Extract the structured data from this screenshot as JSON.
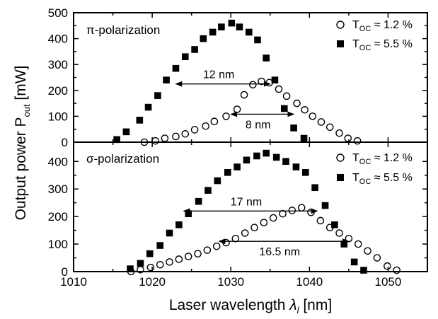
{
  "chart_data": [
    {
      "type": "scatter",
      "title": "π-polarization",
      "xlabel": "Laser wavelength λl [nm]",
      "ylabel": "Output power Pout [mW]",
      "xlim": [
        1010,
        1055
      ],
      "ylim": [
        0,
        500
      ],
      "x_ticks": [
        1010,
        1020,
        1030,
        1040,
        1050
      ],
      "y_ticks": [
        0,
        100,
        200,
        300,
        400,
        500
      ],
      "grid": false,
      "legend_position": "top-right",
      "series": [
        {
          "name": "T_OC ≈ 1.2 %",
          "marker": "open-circle",
          "points": [
            [
              1019,
              0
            ],
            [
              1020.4,
              5
            ],
            [
              1021.6,
              15
            ],
            [
              1023,
              22
            ],
            [
              1024.2,
              32
            ],
            [
              1025.4,
              48
            ],
            [
              1026.8,
              62
            ],
            [
              1027.9,
              80
            ],
            [
              1029.4,
              100
            ],
            [
              1030.8,
              127
            ],
            [
              1031.7,
              183
            ],
            [
              1032.8,
              222
            ],
            [
              1033.9,
              235
            ],
            [
              1034.9,
              230
            ],
            [
              1036.1,
              205
            ],
            [
              1037.1,
              178
            ],
            [
              1038.4,
              150
            ],
            [
              1039.4,
              125
            ],
            [
              1040.4,
              100
            ],
            [
              1041.5,
              78
            ],
            [
              1042.6,
              58
            ],
            [
              1043.8,
              35
            ],
            [
              1044.9,
              15
            ],
            [
              1046.1,
              5
            ]
          ]
        },
        {
          "name": "T_OC ≈ 5.5 %",
          "marker": "filled-square",
          "points": [
            [
              1015.5,
              10
            ],
            [
              1016.7,
              40
            ],
            [
              1018.4,
              85
            ],
            [
              1019.5,
              135
            ],
            [
              1020.7,
              180
            ],
            [
              1021.8,
              240
            ],
            [
              1023,
              285
            ],
            [
              1024.2,
              330
            ],
            [
              1025.4,
              358
            ],
            [
              1026.5,
              400
            ],
            [
              1027.7,
              425
            ],
            [
              1028.8,
              445
            ],
            [
              1030.1,
              460
            ],
            [
              1031.1,
              445
            ],
            [
              1032.3,
              425
            ],
            [
              1033.4,
              395
            ],
            [
              1034.5,
              325
            ],
            [
              1035.6,
              240
            ],
            [
              1036.8,
              130
            ],
            [
              1038,
              55
            ],
            [
              1039.3,
              15
            ]
          ]
        }
      ],
      "annotations": [
        {
          "text": "12 nm",
          "x_from": 1023,
          "x_to": 1035,
          "y": 225
        },
        {
          "text": "8 nm",
          "x_from": 1030,
          "x_to": 1038,
          "y": 108
        }
      ]
    },
    {
      "type": "scatter",
      "title": "σ-polarization",
      "xlabel": "Laser wavelength λl [nm]",
      "ylabel": "Output power Pout [mW]",
      "xlim": [
        1010,
        1055
      ],
      "ylim": [
        0,
        470
      ],
      "x_ticks": [
        1010,
        1020,
        1030,
        1040,
        1050
      ],
      "y_ticks": [
        0,
        100,
        200,
        300,
        400
      ],
      "grid": false,
      "legend_position": "top-right",
      "series": [
        {
          "name": "T_OC ≈ 1.2 %",
          "marker": "open-circle",
          "points": [
            [
              1017.3,
              0
            ],
            [
              1018.5,
              7
            ],
            [
              1019.8,
              15
            ],
            [
              1021,
              25
            ],
            [
              1022.2,
              35
            ],
            [
              1023.4,
              45
            ],
            [
              1024.6,
              55
            ],
            [
              1025.8,
              65
            ],
            [
              1027,
              78
            ],
            [
              1028.2,
              92
            ],
            [
              1029.4,
              105
            ],
            [
              1030.6,
              120
            ],
            [
              1031.8,
              140
            ],
            [
              1033,
              160
            ],
            [
              1034.2,
              178
            ],
            [
              1035.4,
              195
            ],
            [
              1036.6,
              210
            ],
            [
              1037.8,
              222
            ],
            [
              1039,
              232
            ],
            [
              1040.2,
              215
            ],
            [
              1041.4,
              185
            ],
            [
              1042.6,
              160
            ],
            [
              1043.8,
              140
            ],
            [
              1045,
              120
            ],
            [
              1046.2,
              100
            ],
            [
              1047.4,
              75
            ],
            [
              1048.6,
              50
            ],
            [
              1049.9,
              20
            ],
            [
              1051.1,
              5
            ]
          ]
        },
        {
          "name": "T_OC ≈ 5.5 %",
          "marker": "filled-square",
          "points": [
            [
              1017.2,
              10
            ],
            [
              1018.5,
              30
            ],
            [
              1019.7,
              65
            ],
            [
              1021,
              95
            ],
            [
              1022.2,
              140
            ],
            [
              1023.4,
              170
            ],
            [
              1024.6,
              210
            ],
            [
              1025.9,
              255
            ],
            [
              1027.1,
              295
            ],
            [
              1028.3,
              330
            ],
            [
              1029.6,
              360
            ],
            [
              1030.8,
              380
            ],
            [
              1032,
              405
            ],
            [
              1033.3,
              420
            ],
            [
              1034.5,
              430
            ],
            [
              1035.8,
              415
            ],
            [
              1037,
              400
            ],
            [
              1038.3,
              380
            ],
            [
              1039.5,
              360
            ],
            [
              1040.7,
              305
            ],
            [
              1042,
              240
            ],
            [
              1043.2,
              170
            ],
            [
              1044.4,
              100
            ],
            [
              1045.7,
              35
            ],
            [
              1046.9,
              5
            ]
          ]
        }
      ],
      "annotations": [
        {
          "text": "17 nm",
          "x_from": 1024,
          "x_to": 1041,
          "y": 220
        },
        {
          "text": "16.5 nm",
          "x_from": 1028.5,
          "x_to": 1045,
          "y": 110
        }
      ]
    }
  ]
}
